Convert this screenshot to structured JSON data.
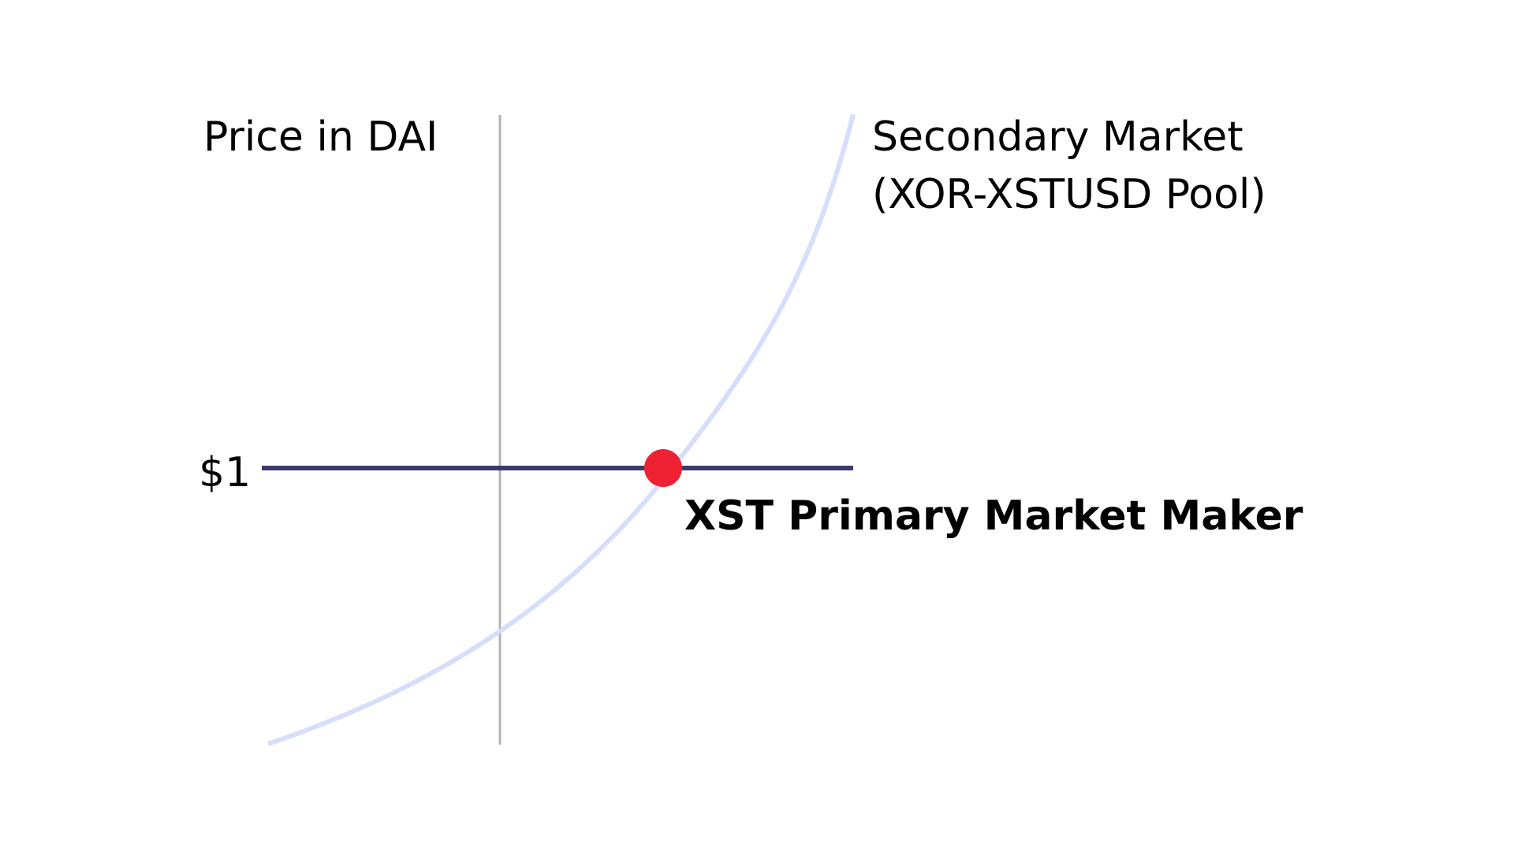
{
  "diagram": {
    "y_axis_label": "Price in DAI",
    "price_tick": "$1",
    "secondary_market": {
      "line1": "Secondary Market",
      "line2": "(XOR-XSTUSD Pool)"
    },
    "primary_market": {
      "label": "XST Primary Market Maker"
    }
  },
  "colors": {
    "axis": "#b3b3b3",
    "primary_line": "#3d3a6e",
    "secondary_curve": "#d6defb",
    "intersection_point": "#ee2233",
    "text": "#000000"
  }
}
